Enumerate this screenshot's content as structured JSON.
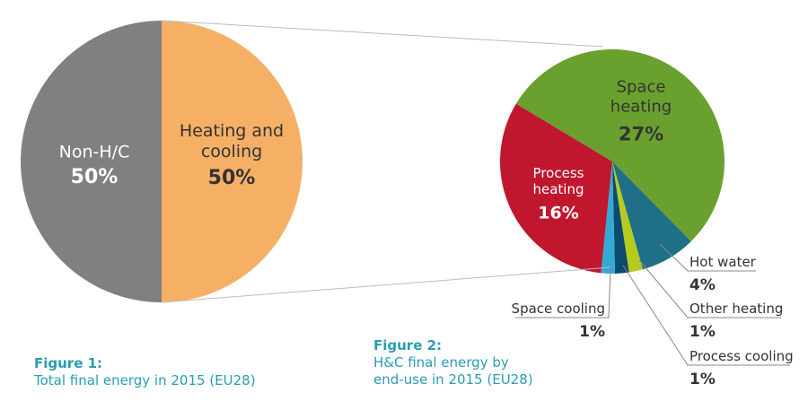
{
  "chart_data": [
    {
      "type": "pie",
      "title": "Figure 1:",
      "subtitle": "Total final energy in 2015 (EU28)",
      "categories": [
        "Heating and cooling",
        "Non-H/C"
      ],
      "values": [
        50,
        50
      ],
      "value_labels": [
        "50%",
        "50%"
      ],
      "colors": [
        "#f5b066",
        "#808080"
      ]
    },
    {
      "type": "pie",
      "title": "Figure 2:",
      "subtitle": "H&C final energy by end-use in 2015 (EU28)",
      "categories": [
        "Space heating",
        "Hot water",
        "Other heating",
        "Process cooling",
        "Space cooling",
        "Process heating"
      ],
      "values": [
        27,
        4,
        1,
        1,
        1,
        16
      ],
      "value_labels": [
        "27%",
        "4%",
        "1%",
        "1%",
        "1%",
        "16%"
      ],
      "colors": [
        "#6aa12e",
        "#1f6f87",
        "#b5cc1f",
        "#0c4a6e",
        "#35a9d6",
        "#c0172f"
      ]
    }
  ]
}
